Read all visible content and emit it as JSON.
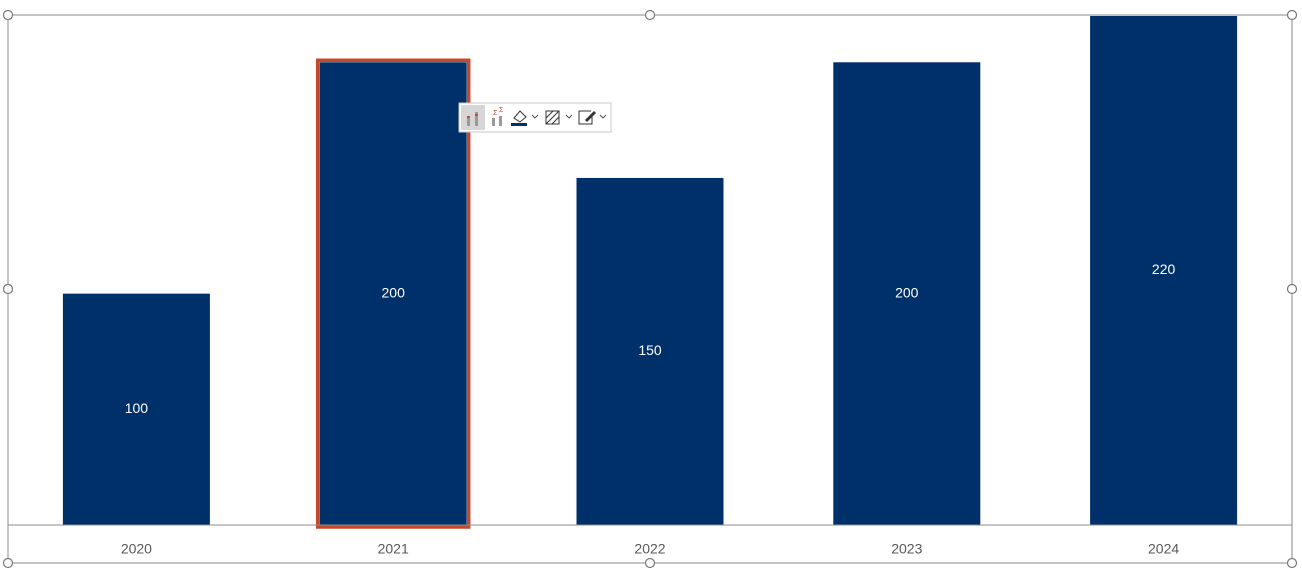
{
  "chart_data": {
    "type": "bar",
    "categories": [
      "2020",
      "2021",
      "2022",
      "2023",
      "2024"
    ],
    "values": [
      100,
      200,
      150,
      200,
      220
    ],
    "color": "#003069",
    "ylim": [
      0,
      220
    ],
    "data_labels": true,
    "selected_index": 1,
    "selection_color": "#c4492b"
  }
}
